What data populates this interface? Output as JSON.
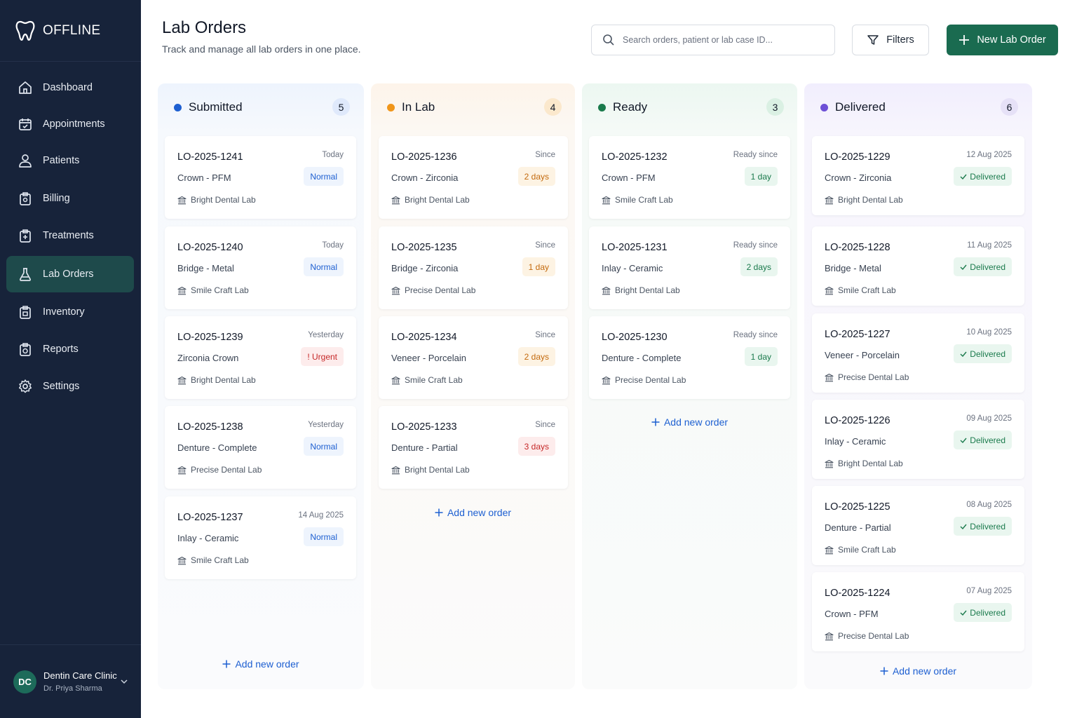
{
  "brand": {
    "name": "OFFLINE"
  },
  "sidebar": {
    "items": [
      {
        "label": "Dashboard",
        "icon": "home-icon"
      },
      {
        "label": "Appointments",
        "icon": "calendar-icon"
      },
      {
        "label": "Patients",
        "icon": "user-icon"
      },
      {
        "label": "Billing",
        "icon": "billing-icon"
      },
      {
        "label": "Treatments",
        "icon": "treatments-icon"
      },
      {
        "label": "Lab Orders",
        "icon": "flask-icon",
        "active": true
      },
      {
        "label": "Inventory",
        "icon": "inventory-icon"
      },
      {
        "label": "Reports",
        "icon": "reports-icon"
      },
      {
        "label": "Settings",
        "icon": "settings-icon"
      }
    ],
    "footer": {
      "initials": "DC",
      "clinic": "Dentin Care Clinic",
      "doctor": "Dr. Priya Sharma"
    }
  },
  "header": {
    "title": "Lab Orders",
    "subtitle": "Track and manage all lab orders in one place.",
    "search_placeholder": "Search orders, patient or lab case ID...",
    "filters_label": "Filters",
    "new_label": "New Lab Order"
  },
  "add_label": "Add new order",
  "colors": {
    "submitted": "#1d5fd1",
    "in_lab": "#f0961a",
    "ready": "#1a7a4c",
    "delivered": "#6d4fd6",
    "primary": "#1a6b50",
    "sidebar": "#17233a"
  },
  "columns": [
    {
      "key": "submitted",
      "title": "Submitted",
      "count": "5",
      "cards": [
        {
          "id": "LO-2025-1241",
          "type": "Crown - PFM",
          "lab": "Bright Dental Lab",
          "meta": "Today",
          "badge": "Normal",
          "badge_kind": "normal"
        },
        {
          "id": "LO-2025-1240",
          "type": "Bridge - Metal",
          "lab": "Smile Craft Lab",
          "meta": "Today",
          "badge": "Normal",
          "badge_kind": "normal"
        },
        {
          "id": "LO-2025-1239",
          "type": "Zirconia Crown",
          "lab": "Bright Dental Lab",
          "meta": "Yesterday",
          "badge": "! Urgent",
          "badge_kind": "urgent"
        },
        {
          "id": "LO-2025-1238",
          "type": "Denture - Complete",
          "lab": "Precise Dental Lab",
          "meta": "Yesterday",
          "badge": "Normal",
          "badge_kind": "normal"
        },
        {
          "id": "LO-2025-1237",
          "type": "Inlay - Ceramic",
          "lab": "Smile Craft Lab",
          "meta": "14 Aug 2025",
          "badge": "Normal",
          "badge_kind": "normal"
        }
      ]
    },
    {
      "key": "in_lab",
      "title": "In Lab",
      "count": "4",
      "cards": [
        {
          "id": "LO-2025-1236",
          "type": "Crown - Zirconia",
          "lab": "Bright Dental Lab",
          "meta": "Since",
          "badge": "2 days",
          "badge_kind": "orange"
        },
        {
          "id": "LO-2025-1235",
          "type": "Bridge - Zirconia",
          "lab": "Precise Dental Lab",
          "meta": "Since",
          "badge": "1 day",
          "badge_kind": "orange"
        },
        {
          "id": "LO-2025-1234",
          "type": "Veneer - Porcelain",
          "lab": "Smile Craft Lab",
          "meta": "Since",
          "badge": "2 days",
          "badge_kind": "orange"
        },
        {
          "id": "LO-2025-1233",
          "type": "Denture - Partial",
          "lab": "Bright Dental Lab",
          "meta": "Since",
          "badge": "3 days",
          "badge_kind": "red"
        }
      ]
    },
    {
      "key": "ready",
      "title": "Ready",
      "count": "3",
      "cards": [
        {
          "id": "LO-2025-1232",
          "type": "Crown - PFM",
          "lab": "Smile Craft Lab",
          "meta": "Ready since",
          "badge": "1 day",
          "badge_kind": "green"
        },
        {
          "id": "LO-2025-1231",
          "type": "Inlay - Ceramic",
          "lab": "Bright Dental Lab",
          "meta": "Ready since",
          "badge": "2 days",
          "badge_kind": "green"
        },
        {
          "id": "LO-2025-1230",
          "type": "Denture - Complete",
          "lab": "Precise Dental Lab",
          "meta": "Ready since",
          "badge": "1 day",
          "badge_kind": "green"
        }
      ]
    },
    {
      "key": "delivered",
      "title": "Delivered",
      "count": "6",
      "cards": [
        {
          "id": "LO-2025-1229",
          "type": "Crown - Zirconia",
          "lab": "Bright Dental Lab",
          "meta": "12 Aug 2025",
          "badge": "Delivered",
          "badge_kind": "delivered"
        },
        {
          "id": "LO-2025-1228",
          "type": "Bridge - Metal",
          "lab": "Smile Craft Lab",
          "meta": "11 Aug 2025",
          "badge": "Delivered",
          "badge_kind": "delivered"
        },
        {
          "id": "LO-2025-1227",
          "type": "Veneer - Porcelain",
          "lab": "Precise Dental Lab",
          "meta": "10 Aug 2025",
          "badge": "Delivered",
          "badge_kind": "delivered"
        },
        {
          "id": "LO-2025-1226",
          "type": "Inlay - Ceramic",
          "lab": "Bright Dental Lab",
          "meta": "09 Aug 2025",
          "badge": "Delivered",
          "badge_kind": "delivered"
        },
        {
          "id": "LO-2025-1225",
          "type": "Denture - Partial",
          "lab": "Smile Craft Lab",
          "meta": "08 Aug 2025",
          "badge": "Delivered",
          "badge_kind": "delivered"
        },
        {
          "id": "LO-2025-1224",
          "type": "Crown - PFM",
          "lab": "Precise Dental Lab",
          "meta": "07 Aug 2025",
          "badge": "Delivered",
          "badge_kind": "delivered"
        }
      ]
    }
  ]
}
